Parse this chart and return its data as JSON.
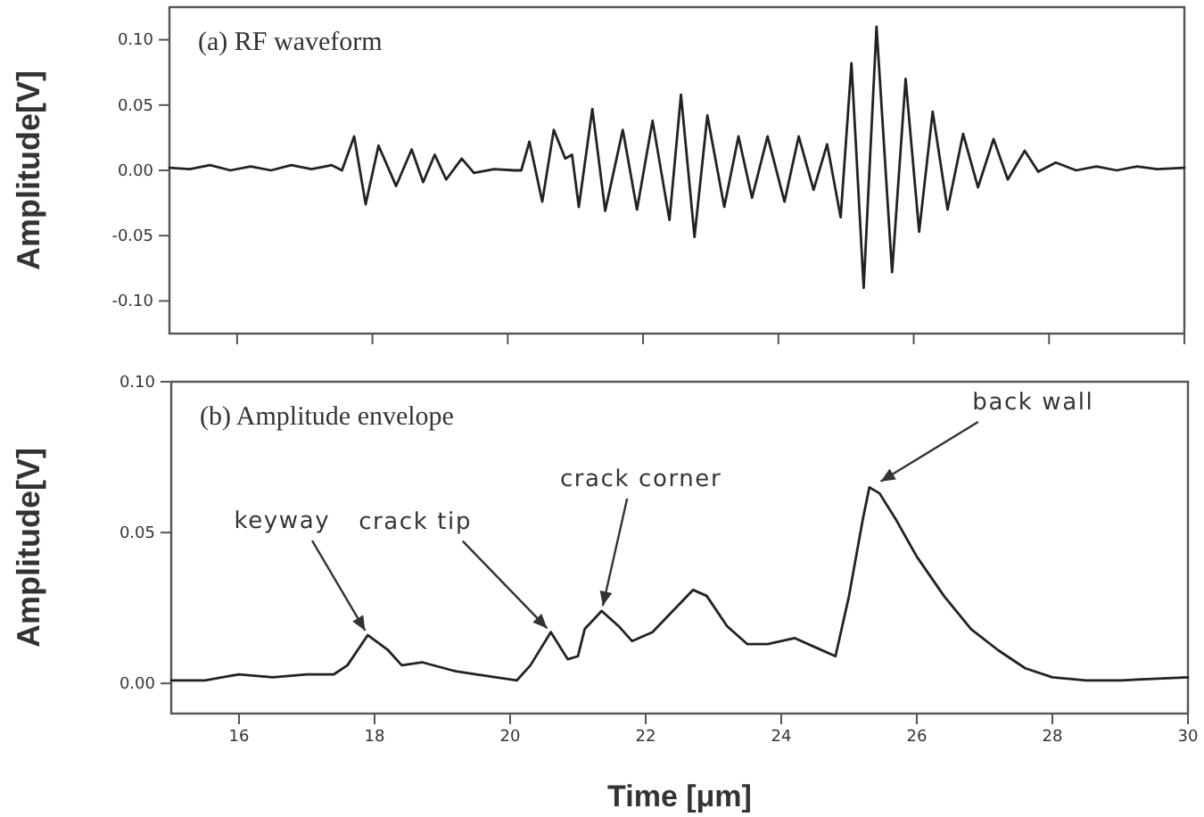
{
  "chart_data": [
    {
      "type": "line",
      "title": "(a) RF waveform",
      "ylabel": "Amplitude[V]",
      "tick_labels": "y",
      "xlim": [
        15,
        30
      ],
      "xticks": [
        16,
        18,
        20,
        22,
        24,
        26,
        28,
        30
      ],
      "ylim": [
        -0.125,
        0.125
      ],
      "yticks": [
        {
          "value": -0.1,
          "label": "-0.10"
        },
        {
          "value": -0.05,
          "label": "-0.05"
        },
        {
          "value": 0,
          "label": "0.00"
        },
        {
          "value": 0.05,
          "label": "0.05"
        },
        {
          "value": 0.1,
          "label": "0.10"
        }
      ],
      "grid": false,
      "line_style": "solid",
      "marker": "none",
      "series": [
        {
          "color": "#222222",
          "x": [
            15,
            15.3,
            15.6,
            15.9,
            16.2,
            16.5,
            16.8,
            17.1,
            17.4,
            17.55,
            17.73,
            17.9,
            18.09,
            18.35,
            18.58,
            18.75,
            18.92,
            19.09,
            19.32,
            19.5,
            19.8,
            20.1,
            20.2,
            20.32,
            20.51,
            20.68,
            20.85,
            20.95,
            21.05,
            21.25,
            21.44,
            21.7,
            21.91,
            22.14,
            22.39,
            22.56,
            22.76,
            22.95,
            23.2,
            23.41,
            23.61,
            23.84,
            24.09,
            24.3,
            24.52,
            24.72,
            24.92,
            25.08,
            25.26,
            25.45,
            25.68,
            25.88,
            26.08,
            26.28,
            26.5,
            26.73,
            26.95,
            27.18,
            27.39,
            27.64,
            27.84,
            28.1,
            28.4,
            28.7,
            29,
            29.3,
            29.6,
            30
          ],
          "values": [
            0.002,
            0.001,
            0.004,
            0.0,
            0.003,
            0.0,
            0.004,
            0.001,
            0.004,
            0.0,
            0.026,
            -0.026,
            0.019,
            -0.012,
            0.016,
            -0.009,
            0.012,
            -0.007,
            0.009,
            -0.002,
            0.001,
            0.0,
            0.0,
            0.022,
            -0.024,
            0.031,
            0.009,
            0.012,
            -0.028,
            0.047,
            -0.031,
            0.031,
            -0.03,
            0.038,
            -0.038,
            0.058,
            -0.051,
            0.042,
            -0.028,
            0.026,
            -0.021,
            0.026,
            -0.024,
            0.026,
            -0.015,
            0.02,
            -0.036,
            0.082,
            -0.09,
            0.11,
            -0.078,
            0.07,
            -0.047,
            0.045,
            -0.03,
            0.028,
            -0.013,
            0.024,
            -0.007,
            0.015,
            -0.001,
            0.006,
            0.0,
            0.003,
            0.0,
            0.003,
            0.001,
            0.002
          ]
        }
      ]
    },
    {
      "type": "line",
      "title": "(b) Amplitude envelope",
      "xlabel": "Time [μm]",
      "ylabel": "Amplitude[V]",
      "xlim": [
        15,
        30
      ],
      "xticks": [
        16,
        18,
        20,
        22,
        24,
        26,
        28,
        30
      ],
      "ylim": [
        -0.01,
        0.1
      ],
      "yticks": [
        {
          "value": 0,
          "label": "0.00"
        },
        {
          "value": 0.05,
          "label": "0.05"
        },
        {
          "value": 0.1,
          "label": "0.10"
        }
      ],
      "grid": false,
      "line_style": "solid",
      "marker": "none",
      "series": [
        {
          "color": "#222222",
          "x": [
            15,
            15.5,
            16,
            16.5,
            17,
            17.4,
            17.6,
            17.9,
            18.2,
            18.4,
            18.7,
            19.2,
            19.5,
            20.1,
            20.3,
            20.6,
            20.85,
            21.0,
            21.1,
            21.35,
            21.6,
            21.8,
            22.1,
            22.4,
            22.7,
            22.9,
            23.2,
            23.5,
            23.8,
            24.2,
            24.5,
            24.8,
            25.0,
            25.2,
            25.3,
            25.45,
            25.7,
            26.0,
            26.4,
            26.8,
            27.2,
            27.6,
            28.0,
            28.5,
            29,
            30
          ],
          "values": [
            0.001,
            0.001,
            0.003,
            0.002,
            0.003,
            0.003,
            0.006,
            0.016,
            0.011,
            0.006,
            0.007,
            0.004,
            0.003,
            0.001,
            0.006,
            0.017,
            0.008,
            0.009,
            0.018,
            0.024,
            0.019,
            0.014,
            0.017,
            0.024,
            0.031,
            0.029,
            0.019,
            0.013,
            0.013,
            0.015,
            0.012,
            0.009,
            0.029,
            0.054,
            0.065,
            0.063,
            0.054,
            0.042,
            0.029,
            0.018,
            0.011,
            0.005,
            0.002,
            0.001,
            0.001,
            0.002
          ]
        }
      ],
      "annotations": [
        {
          "text": "keyway",
          "x": 17.9,
          "y": 0.016
        },
        {
          "text": "crack tip",
          "x": 20.6,
          "y": 0.017
        },
        {
          "text": "crack corner",
          "x": 21.35,
          "y": 0.024
        },
        {
          "text": "back wall",
          "x": 25.4,
          "y": 0.066
        }
      ]
    }
  ]
}
